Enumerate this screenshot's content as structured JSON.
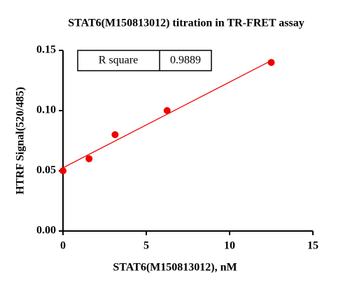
{
  "chart_data": {
    "type": "scatter",
    "title": "STAT6(M150813012) titration in TR-FRET assay",
    "x_label": "STAT6(M150813012), nM",
    "y_label": "HTRF Signal(520/485)",
    "x": [
      0,
      1.5625,
      3.125,
      6.25,
      12.5
    ],
    "values": [
      0.05,
      0.06,
      0.08,
      0.1,
      0.14
    ],
    "color": "#ee0000",
    "fit_line": {
      "x": [
        0,
        12.5
      ],
      "values": [
        0.0525,
        0.1415
      ],
      "color": "#ee0000"
    },
    "annotation": {
      "label": "R square",
      "value": "0.9889"
    },
    "xlim": [
      0,
      15
    ],
    "xticks": [
      0,
      5,
      10,
      15
    ],
    "ylim": [
      0,
      0.15
    ],
    "yticks": [
      {
        "value": 0,
        "label": "0.00"
      },
      0.05,
      {
        "value": 0.1,
        "label": "0.10"
      },
      0.15
    ]
  }
}
